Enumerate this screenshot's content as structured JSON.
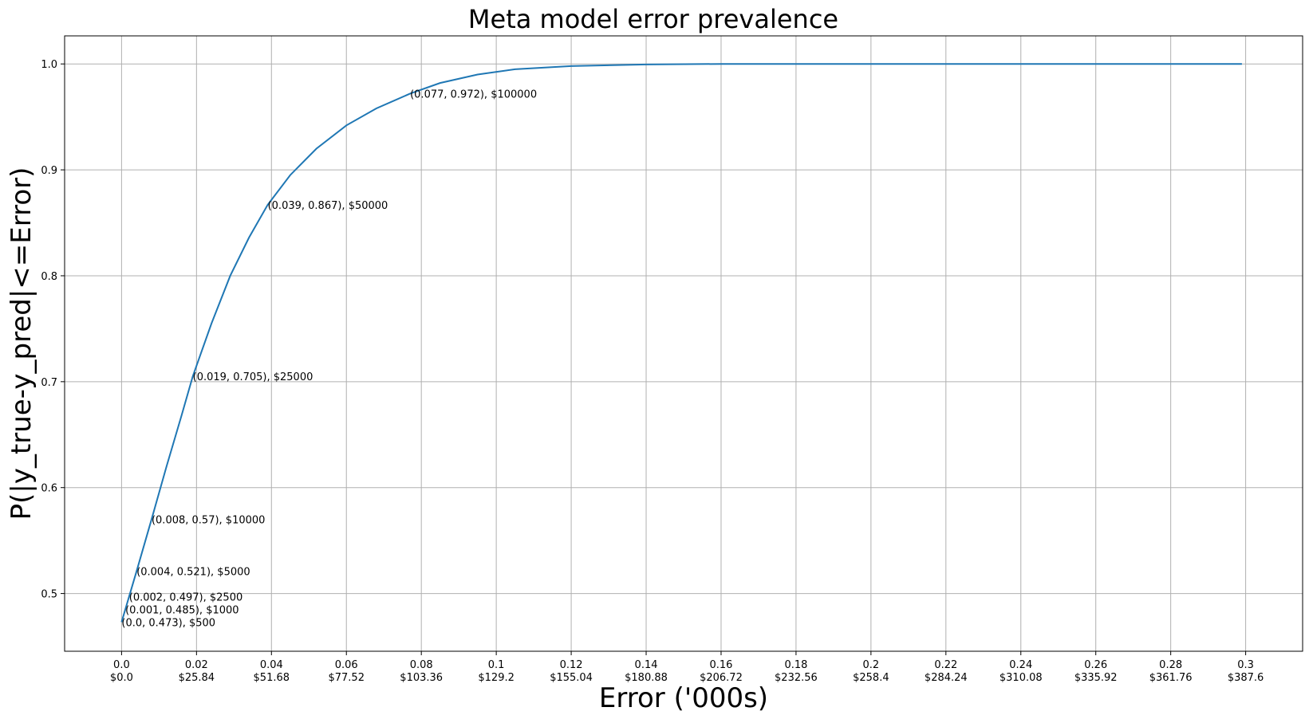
{
  "chart_data": {
    "type": "line",
    "title": "Meta model error prevalence",
    "xlabel": "Error ('000s)",
    "ylabel": "P(|y_true-y_pred|<=Error)",
    "xlim": [
      -0.0152,
      0.3152
    ],
    "ylim": [
      0.4455,
      1.0265
    ],
    "grid": true,
    "x_ticks": [
      0.0,
      0.02,
      0.04,
      0.06,
      0.08,
      0.1,
      0.12,
      0.14,
      0.16,
      0.18,
      0.2,
      0.22,
      0.24,
      0.26,
      0.28,
      0.3
    ],
    "x_tick_labels": [
      "0.0",
      "0.02",
      "0.04",
      "0.06",
      "0.08",
      "0.1",
      "0.12",
      "0.14",
      "0.16",
      "0.18",
      "0.2",
      "0.22",
      "0.24",
      "0.26",
      "0.28",
      "0.3"
    ],
    "x_tick_sublabels": [
      "$0.0",
      "$25.84",
      "$51.68",
      "$77.52",
      "$103.36",
      "$129.2",
      "$155.04",
      "$180.88",
      "$206.72",
      "$232.56",
      "$258.4",
      "$284.24",
      "$310.08",
      "$335.92",
      "$361.76",
      "$387.6"
    ],
    "y_ticks": [
      0.5,
      0.6,
      0.7,
      0.8,
      0.9,
      1.0
    ],
    "y_tick_labels": [
      "0.5",
      "0.6",
      "0.7",
      "0.8",
      "0.9",
      "1.0"
    ],
    "series": [
      {
        "color": "#1f77b4",
        "x": [
          0.0,
          0.001,
          0.002,
          0.004,
          0.008,
          0.012,
          0.016,
          0.019,
          0.024,
          0.029,
          0.034,
          0.039,
          0.045,
          0.052,
          0.06,
          0.068,
          0.077,
          0.085,
          0.095,
          0.105,
          0.12,
          0.14,
          0.16,
          0.2,
          0.25,
          0.299
        ],
        "y": [
          0.473,
          0.485,
          0.497,
          0.521,
          0.57,
          0.62,
          0.668,
          0.705,
          0.755,
          0.8,
          0.836,
          0.867,
          0.895,
          0.92,
          0.942,
          0.958,
          0.972,
          0.982,
          0.99,
          0.995,
          0.998,
          0.9995,
          1.0,
          1.0,
          1.0,
          1.0
        ]
      }
    ],
    "annotations": [
      {
        "x": 0.0,
        "y": 0.473,
        "text": "(0.0, 0.473), $500"
      },
      {
        "x": 0.001,
        "y": 0.485,
        "text": "(0.001, 0.485), $1000"
      },
      {
        "x": 0.002,
        "y": 0.497,
        "text": "(0.002, 0.497), $2500"
      },
      {
        "x": 0.004,
        "y": 0.521,
        "text": "(0.004, 0.521), $5000"
      },
      {
        "x": 0.008,
        "y": 0.57,
        "text": "(0.008, 0.57), $10000"
      },
      {
        "x": 0.019,
        "y": 0.705,
        "text": "(0.019, 0.705), $25000"
      },
      {
        "x": 0.039,
        "y": 0.867,
        "text": "(0.039, 0.867), $50000"
      },
      {
        "x": 0.077,
        "y": 0.972,
        "text": "(0.077, 0.972), $100000"
      }
    ]
  }
}
